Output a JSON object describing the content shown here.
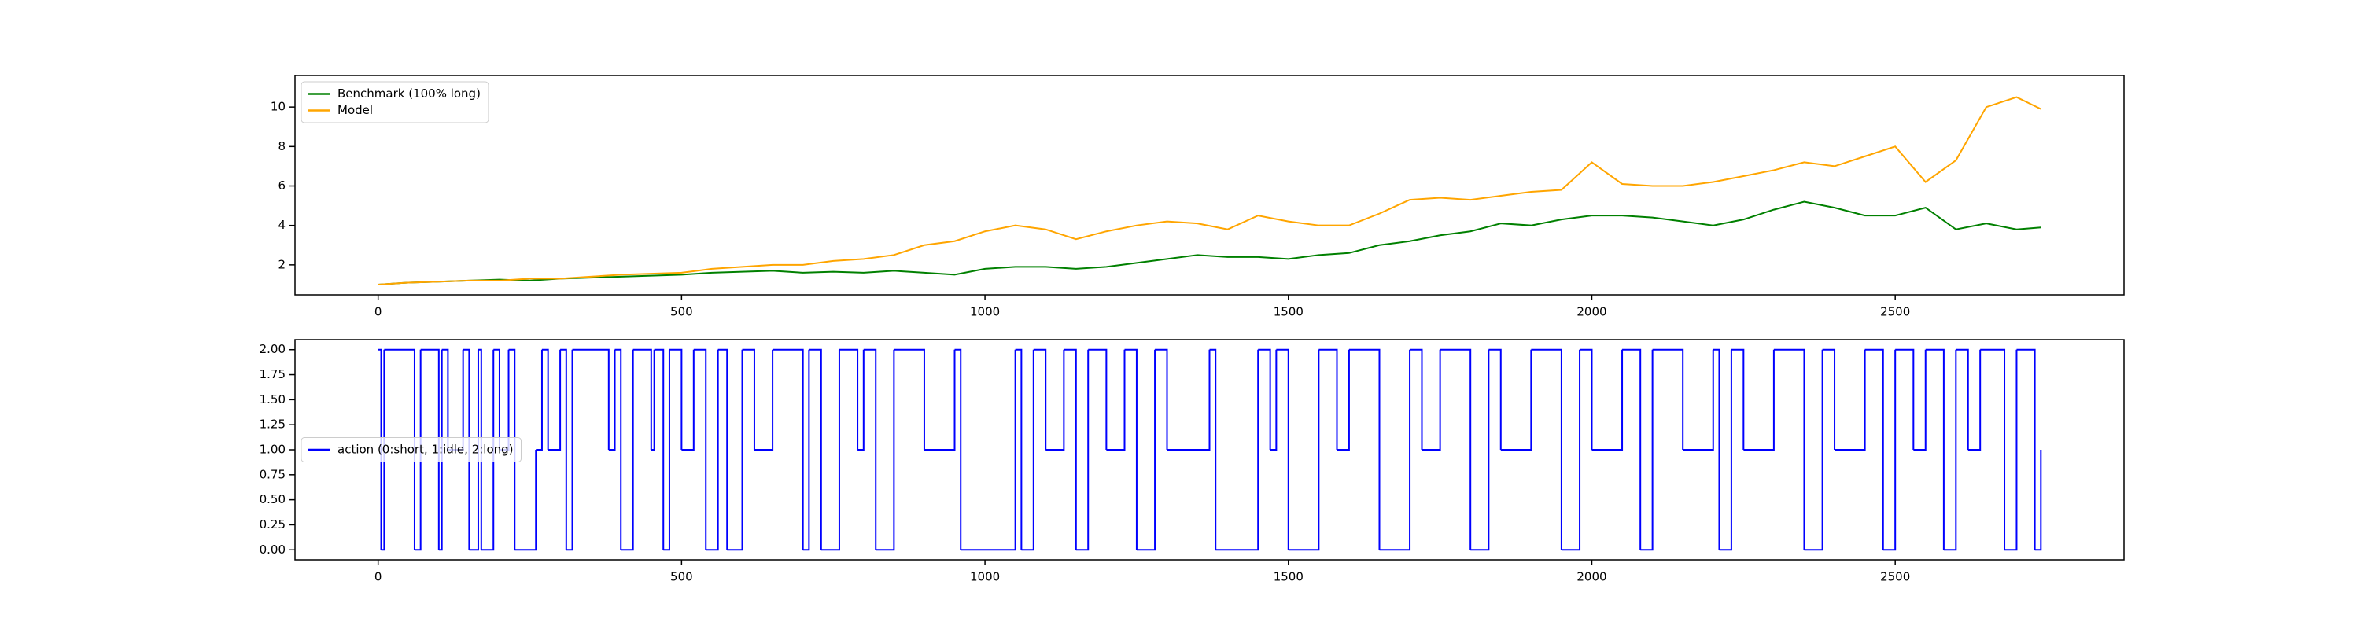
{
  "chart_data": [
    {
      "type": "line",
      "legend": "upper left",
      "x": [
        0,
        50,
        100,
        150,
        200,
        250,
        300,
        350,
        400,
        450,
        500,
        550,
        600,
        650,
        700,
        750,
        800,
        850,
        900,
        950,
        1000,
        1050,
        1100,
        1150,
        1200,
        1250,
        1300,
        1350,
        1400,
        1450,
        1500,
        1550,
        1600,
        1650,
        1700,
        1750,
        1800,
        1850,
        1900,
        1950,
        2000,
        2050,
        2100,
        2150,
        2200,
        2250,
        2300,
        2350,
        2400,
        2450,
        2500,
        2550,
        2600,
        2650,
        2700,
        2740
      ],
      "series": [
        {
          "name": "Benchmark (100% long)",
          "color": "green",
          "values": [
            1.0,
            1.1,
            1.15,
            1.2,
            1.25,
            1.2,
            1.3,
            1.35,
            1.4,
            1.45,
            1.5,
            1.6,
            1.65,
            1.7,
            1.6,
            1.65,
            1.6,
            1.7,
            1.6,
            1.5,
            1.8,
            1.9,
            1.9,
            1.8,
            1.9,
            2.1,
            2.3,
            2.5,
            2.4,
            2.4,
            2.3,
            2.5,
            2.6,
            3.0,
            3.2,
            3.5,
            3.7,
            4.1,
            4.0,
            4.3,
            4.5,
            4.5,
            4.4,
            4.2,
            4.0,
            4.3,
            4.8,
            5.2,
            4.9,
            4.5,
            4.5,
            4.9,
            3.8,
            4.1,
            3.8,
            3.9
          ]
        },
        {
          "name": "Model",
          "color": "orange",
          "values": [
            1.0,
            1.1,
            1.15,
            1.2,
            1.2,
            1.3,
            1.3,
            1.4,
            1.5,
            1.55,
            1.6,
            1.8,
            1.9,
            2.0,
            2.0,
            2.2,
            2.3,
            2.5,
            3.0,
            3.2,
            3.7,
            4.0,
            3.8,
            3.3,
            3.7,
            4.0,
            4.2,
            4.1,
            3.8,
            4.5,
            4.2,
            4.0,
            4.0,
            4.6,
            5.3,
            5.4,
            5.3,
            5.5,
            5.7,
            5.8,
            7.2,
            6.1,
            6.0,
            6.0,
            6.2,
            6.5,
            6.8,
            7.2,
            7.0,
            7.5,
            8.0,
            6.2,
            7.3,
            10.0,
            10.5,
            9.9
          ]
        }
      ],
      "xlim": [
        -137,
        2877
      ],
      "ylim": [
        0.48,
        11.6
      ],
      "xticks": [
        0,
        500,
        1000,
        1500,
        2000,
        2500
      ],
      "yticks": [
        2,
        4,
        6,
        8,
        10
      ]
    },
    {
      "type": "line",
      "drawstyle": "steps-post",
      "legend": "center left",
      "x": [
        0,
        5,
        10,
        60,
        70,
        100,
        105,
        115,
        140,
        150,
        165,
        170,
        190,
        200,
        215,
        225,
        260,
        270,
        280,
        300,
        310,
        320,
        380,
        390,
        400,
        420,
        450,
        455,
        470,
        480,
        500,
        520,
        540,
        560,
        575,
        600,
        620,
        650,
        700,
        710,
        730,
        760,
        790,
        800,
        820,
        850,
        900,
        950,
        960,
        1050,
        1060,
        1080,
        1100,
        1130,
        1150,
        1170,
        1200,
        1230,
        1250,
        1280,
        1300,
        1370,
        1380,
        1450,
        1470,
        1480,
        1500,
        1550,
        1580,
        1600,
        1650,
        1700,
        1720,
        1750,
        1800,
        1830,
        1850,
        1900,
        1950,
        1980,
        2000,
        2050,
        2080,
        2100,
        2150,
        2200,
        2210,
        2230,
        2250,
        2300,
        2350,
        2380,
        2400,
        2450,
        2480,
        2500,
        2530,
        2550,
        2580,
        2600,
        2620,
        2640,
        2680,
        2700,
        2730,
        2740
      ],
      "series": [
        {
          "name": "action (0:short, 1:idle, 2:long)",
          "color": "blue",
          "values": [
            2,
            0,
            2,
            0,
            2,
            0,
            2,
            1,
            2,
            0,
            2,
            0,
            2,
            1,
            2,
            0,
            1,
            2,
            1,
            2,
            0,
            2,
            1,
            2,
            0,
            2,
            1,
            2,
            0,
            2,
            1,
            2,
            0,
            2,
            0,
            2,
            1,
            2,
            0,
            2,
            0,
            2,
            1,
            2,
            0,
            2,
            1,
            2,
            0,
            2,
            0,
            2,
            1,
            2,
            0,
            2,
            1,
            2,
            0,
            2,
            1,
            2,
            0,
            2,
            1,
            2,
            0,
            2,
            1,
            2,
            0,
            2,
            1,
            2,
            0,
            2,
            1,
            2,
            0,
            2,
            1,
            2,
            0,
            2,
            1,
            2,
            0,
            2,
            1,
            2,
            0,
            2,
            1,
            2,
            0,
            2,
            1,
            2,
            0,
            2,
            1,
            2,
            0,
            2,
            0,
            1
          ]
        }
      ],
      "xlim": [
        -137,
        2877
      ],
      "ylim": [
        -0.1,
        2.1
      ],
      "xticks": [
        0,
        500,
        1000,
        1500,
        2000,
        2500
      ],
      "yticks": [
        {
          "value": 0,
          "label": "0.00"
        },
        {
          "value": 0.25,
          "label": "0.25"
        },
        {
          "value": 0.5,
          "label": "0.50"
        },
        {
          "value": 0.75,
          "label": "0.75"
        },
        {
          "value": 1,
          "label": "1.00"
        },
        {
          "value": 1.25,
          "label": "1.25"
        },
        {
          "value": 1.5,
          "label": "1.50"
        },
        {
          "value": 1.75,
          "label": "1.75"
        },
        {
          "value": 2,
          "label": "2.00"
        }
      ]
    }
  ]
}
